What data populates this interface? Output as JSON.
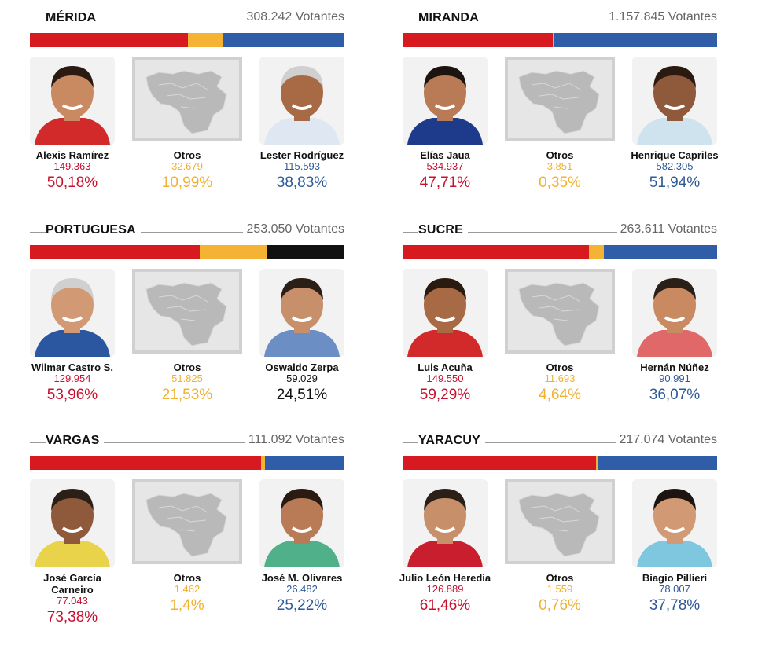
{
  "colors": {
    "red": "#d71920",
    "yellow": "#f5b335",
    "blue": "#2f5da8",
    "black": "#111111"
  },
  "states": [
    {
      "name": "MÉRIDA",
      "voters": "308.242 Votantes",
      "bar": [
        {
          "color": "#d71920",
          "share": 50.18
        },
        {
          "color": "#f5b335",
          "share": 10.99
        },
        {
          "color": "#2f5da8",
          "share": 38.83
        }
      ],
      "left": {
        "name": "Alexis Ramírez",
        "votes": "149.363",
        "pct": "50,18%",
        "color": "red"
      },
      "others": {
        "name": "Otros",
        "votes": "32.679",
        "pct": "10,99%",
        "color": "yellow"
      },
      "right": {
        "name": "Lester Rodríguez",
        "votes": "115.593",
        "pct": "38,83%",
        "color": "blue"
      }
    },
    {
      "name": "MIRANDA",
      "voters": "1.157.845 Votantes",
      "bar": [
        {
          "color": "#d71920",
          "share": 47.71
        },
        {
          "color": "#f5b335",
          "share": 0.35
        },
        {
          "color": "#2f5da8",
          "share": 51.94
        }
      ],
      "left": {
        "name": "Elías Jaua",
        "votes": "534.937",
        "pct": "47,71%",
        "color": "red"
      },
      "others": {
        "name": "Otros",
        "votes": "3.851",
        "pct": "0,35%",
        "color": "yellow"
      },
      "right": {
        "name": "Henrique Capriles",
        "votes": "582.305",
        "pct": "51,94%",
        "color": "blue"
      }
    },
    {
      "name": "PORTUGUESA",
      "voters": "253.050 Votantes",
      "bar": [
        {
          "color": "#d71920",
          "share": 53.96
        },
        {
          "color": "#f5b335",
          "share": 21.53
        },
        {
          "color": "#111111",
          "share": 24.51
        }
      ],
      "left": {
        "name": "Wilmar Castro S.",
        "votes": "129.954",
        "pct": "53,96%",
        "color": "red"
      },
      "others": {
        "name": "Otros",
        "votes": "51.825",
        "pct": "21,53%",
        "color": "yellow"
      },
      "right": {
        "name": "Oswaldo Zerpa",
        "votes": "59.029",
        "pct": "24,51%",
        "color": "black"
      }
    },
    {
      "name": "SUCRE",
      "voters": "263.611 Votantes",
      "bar": [
        {
          "color": "#d71920",
          "share": 59.29
        },
        {
          "color": "#f5b335",
          "share": 4.64
        },
        {
          "color": "#2f5da8",
          "share": 36.07
        }
      ],
      "left": {
        "name": "Luis Acuña",
        "votes": "149.550",
        "pct": "59,29%",
        "color": "red"
      },
      "others": {
        "name": "Otros",
        "votes": "11.693",
        "pct": "4,64%",
        "color": "yellow"
      },
      "right": {
        "name": "Hernán Núñez",
        "votes": "90.991",
        "pct": "36,07%",
        "color": "blue"
      }
    },
    {
      "name": "VARGAS",
      "voters": "111.092 Votantes",
      "bar": [
        {
          "color": "#d71920",
          "share": 73.38
        },
        {
          "color": "#f5b335",
          "share": 1.4
        },
        {
          "color": "#2f5da8",
          "share": 25.22
        }
      ],
      "left": {
        "name": "José García Carneiro",
        "votes": "77.043",
        "pct": "73,38%",
        "color": "red"
      },
      "others": {
        "name": "Otros",
        "votes": "1.462",
        "pct": "1,4%",
        "color": "yellow"
      },
      "right": {
        "name": "José M. Olivares",
        "votes": "26.482",
        "pct": "25,22%",
        "color": "blue"
      }
    },
    {
      "name": "YARACUY",
      "voters": "217.074 Votantes",
      "bar": [
        {
          "color": "#d71920",
          "share": 61.46
        },
        {
          "color": "#f5b335",
          "share": 0.76
        },
        {
          "color": "#2f5da8",
          "share": 37.78
        }
      ],
      "left": {
        "name": "Julio León Heredia",
        "votes": "126.889",
        "pct": "61,46%",
        "color": "red"
      },
      "others": {
        "name": "Otros",
        "votes": "1.559",
        "pct": "0,76%",
        "color": "yellow"
      },
      "right": {
        "name": "Biagio Pillieri",
        "votes": "78.007",
        "pct": "37,78%",
        "color": "blue"
      }
    }
  ]
}
